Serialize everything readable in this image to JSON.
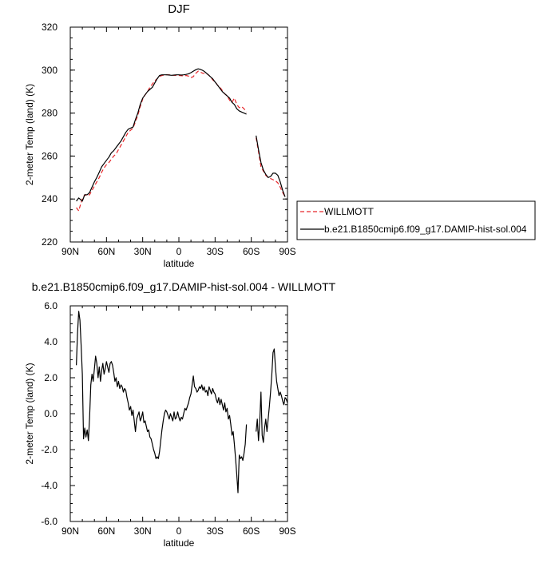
{
  "chart_data": [
    {
      "type": "line",
      "title": "DJF",
      "xlabel": "latitude",
      "ylabel": "2-meter Temp (land) (K)",
      "xlim": [
        90,
        -90
      ],
      "ylim": [
        220,
        320
      ],
      "x_ticks": [
        90,
        60,
        30,
        0,
        -30,
        -60,
        -90
      ],
      "x_tick_labels": [
        "90N",
        "60N",
        "30N",
        "0",
        "30S",
        "60S",
        "90S"
      ],
      "y_ticks": [
        220,
        240,
        260,
        280,
        300,
        320
      ],
      "y_tick_labels": [
        "220",
        "240",
        "260",
        "280",
        "300",
        "320"
      ],
      "legend": {
        "placement": "right",
        "entries": [
          "WILLMOTT",
          "b.e21.B1850cmip6.f09_g17.DAMIP-hist-sol.004"
        ]
      },
      "series": [
        {
          "name": "WILLMOTT",
          "color": "#e8262a",
          "dash": "dashed",
          "segments": [
            {
              "x": [
                85,
                83,
                82,
                80,
                78,
                76,
                74,
                72,
                70,
                68,
                66,
                64,
                62,
                60,
                58,
                56,
                54,
                52,
                50,
                48,
                46,
                44,
                42,
                40,
                38,
                36,
                34,
                32,
                30,
                28,
                26,
                24,
                22,
                20,
                18,
                16,
                14,
                12,
                10,
                8,
                6,
                4,
                2,
                0,
                -2,
                -4,
                -6,
                -8,
                -10,
                -12,
                -14,
                -16,
                -18,
                -20,
                -22,
                -24,
                -26,
                -28,
                -30,
                -32,
                -34,
                -36,
                -38,
                -40,
                -42,
                -44,
                -46,
                -48,
                -50,
                -52,
                -54,
                -56
              ],
              "y": [
                236,
                234.5,
                236.5,
                240,
                242,
                241.5,
                242,
                244,
                246,
                248,
                250,
                252.5,
                254.5,
                256,
                257,
                258.5,
                260,
                261,
                263,
                265,
                267,
                269,
                271,
                272,
                273,
                276,
                279,
                283,
                286.5,
                288.5,
                290,
                292,
                293.5,
                295,
                296,
                297,
                297.5,
                297.7,
                297.8,
                297.8,
                297.7,
                297.6,
                297.5,
                297.5,
                297.4,
                297.3,
                297.5,
                297.2,
                296.5,
                297,
                298.5,
                299.5,
                299,
                298.5,
                298.5,
                298,
                297,
                295.5,
                294.5,
                293,
                292,
                290.5,
                289,
                288,
                286,
                285,
                287,
                284,
                282.5,
                283,
                282,
                280.5
              ]
            },
            {
              "x": [
                -64,
                -66,
                -68,
                -70,
                -72,
                -74,
                -76,
                -78,
                -80,
                -82,
                -84,
                -86,
                -88
              ],
              "y": [
                268.5,
                262,
                255,
                253,
                251,
                250,
                249.5,
                249,
                248.5,
                247.5,
                245.5,
                243,
                241
              ]
            }
          ]
        },
        {
          "name": "b.e21.B1850cmip6.f09_g17.DAMIP-hist-sol.004",
          "color": "#000000",
          "dash": "solid",
          "segments": [
            {
              "x": [
                85,
                83,
                82,
                80,
                78,
                76,
                74,
                72,
                70,
                68,
                66,
                64,
                62,
                60,
                58,
                56,
                54,
                52,
                50,
                48,
                46,
                44,
                42,
                40,
                38,
                36,
                34,
                32,
                30,
                28,
                26,
                24,
                22,
                20,
                18,
                16,
                14,
                12,
                10,
                8,
                6,
                4,
                2,
                0,
                -2,
                -4,
                -6,
                -8,
                -10,
                -12,
                -14,
                -16,
                -18,
                -20,
                -22,
                -24,
                -26,
                -28,
                -30,
                -32,
                -34,
                -36,
                -38,
                -40,
                -42,
                -44,
                -46,
                -48,
                -50,
                -52,
                -54,
                -56
              ],
              "y": [
                239,
                240.5,
                240,
                239,
                242,
                242,
                243,
                245.5,
                248,
                250,
                252.5,
                255,
                256.5,
                258,
                259.5,
                261.5,
                262.5,
                264,
                265.5,
                267,
                269,
                271,
                272.5,
                273,
                273.5,
                277,
                280,
                284,
                287,
                288.5,
                290,
                291,
                292,
                294,
                296,
                297.5,
                297.8,
                297.8,
                297.8,
                297.7,
                297.6,
                297.7,
                297.8,
                297.8,
                297.7,
                297.8,
                298,
                298.3,
                298.8,
                299.5,
                300.2,
                300.6,
                300.3,
                299.8,
                299,
                298,
                297,
                296,
                294.5,
                293,
                291.5,
                290,
                289,
                288,
                287,
                285,
                284,
                282,
                281,
                280.5,
                280,
                279.5
              ]
            },
            {
              "x": [
                -64,
                -66,
                -68,
                -70,
                -72,
                -74,
                -76,
                -78,
                -80,
                -82,
                -84,
                -86,
                -88
              ],
              "y": [
                269.5,
                263,
                257,
                253.5,
                251.5,
                250,
                250.5,
                252,
                252,
                251,
                248,
                244,
                241
              ]
            }
          ]
        }
      ]
    },
    {
      "type": "line",
      "title": "b.e21.B1850cmip6.f09_g17.DAMIP-hist-sol.004 - WILLMOTT",
      "xlabel": "latitude",
      "ylabel": "2-meter Temp (land) (K)",
      "xlim": [
        90,
        -90
      ],
      "ylim": [
        -6.0,
        6.0
      ],
      "x_ticks": [
        90,
        60,
        30,
        0,
        -30,
        -60,
        -90
      ],
      "x_tick_labels": [
        "90N",
        "60N",
        "30N",
        "0",
        "30S",
        "60S",
        "90S"
      ],
      "y_ticks": [
        -6,
        -4,
        -2,
        0,
        2,
        4,
        6
      ],
      "y_tick_labels": [
        "-6.0",
        "-4.0",
        "-2.0",
        "0.0",
        "2.0",
        "4.0",
        "6.0"
      ],
      "series": [
        {
          "color": "#000000",
          "dash": "solid",
          "segments": [
            {
              "x": [
                85,
                84,
                83,
                82,
                81,
                80,
                79,
                78,
                77,
                76,
                75,
                74,
                73,
                72,
                71,
                70,
                69,
                68,
                67,
                66,
                65,
                64,
                63,
                62,
                61,
                60,
                59,
                58,
                57,
                56,
                55,
                54,
                53,
                52,
                51,
                50,
                49,
                48,
                47,
                46,
                45,
                44,
                43,
                42,
                41,
                40,
                39,
                38,
                37,
                36,
                35,
                34,
                33,
                32,
                31,
                30,
                29,
                28,
                27,
                26,
                25,
                24,
                23,
                22,
                21,
                20,
                19,
                18,
                17,
                16,
                15,
                14,
                13,
                12,
                11,
                10,
                9,
                8,
                7,
                6,
                5,
                4,
                3,
                2,
                1,
                0,
                -1,
                -2,
                -3,
                -4,
                -5,
                -6,
                -7,
                -8,
                -9,
                -10,
                -11,
                -12,
                -13,
                -14,
                -15,
                -16,
                -17,
                -18,
                -19,
                -20,
                -21,
                -22,
                -23,
                -24,
                -25,
                -26,
                -27,
                -28,
                -29,
                -30,
                -31,
                -32,
                -33,
                -34,
                -35,
                -36,
                -37,
                -38,
                -39,
                -40,
                -41,
                -42,
                -43,
                -44,
                -45,
                -46,
                -47,
                -48,
                -49,
                -50,
                -51,
                -52,
                -53,
                -54,
                -55,
                -56
              ],
              "y": [
                2.7,
                4.5,
                5.7,
                5.2,
                3.8,
                2.2,
                -1.4,
                -0.8,
                -1.3,
                -0.9,
                -1.5,
                -0.2,
                1.6,
                2.2,
                1.8,
                2.5,
                3.2,
                2.8,
                2.0,
                2.6,
                1.8,
                2.4,
                2.8,
                2.2,
                2.5,
                2.9,
                2.6,
                2.3,
                2.8,
                2.9,
                2.7,
                2.3,
                1.8,
                2.0,
                1.5,
                1.8,
                1.4,
                1.6,
                1.5,
                1.2,
                1.4,
                1.3,
                0.9,
                0.6,
                0.2,
                0.4,
                -0.1,
                0.2,
                -0.4,
                -1.0,
                -0.3,
                -0.1,
                0.1,
                -0.4,
                -0.2,
                0.1,
                -0.5,
                -0.4,
                -0.7,
                -1.0,
                -0.9,
                -1.3,
                -1.4,
                -1.7,
                -2.0,
                -2.2,
                -2.5,
                -2.4,
                -2.5,
                -2.1,
                -1.5,
                -0.9,
                -0.4,
                0.0,
                0.2,
                0.1,
                -0.1,
                -0.3,
                0.0,
                -0.2,
                -0.4,
                0.1,
                -0.3,
                -0.2,
                0.1,
                -0.2,
                -0.4,
                -0.2,
                -0.3,
                0.0,
                0.3,
                0.2,
                0.4,
                0.6,
                0.9,
                1.1,
                1.6,
                2.1,
                1.5,
                1.4,
                1.2,
                1.3,
                1.5,
                1.4,
                1.6,
                1.3,
                1.5,
                1.2,
                1.3,
                1.0,
                1.5,
                1.3,
                1.1,
                1.4,
                1.2,
                1.1,
                0.8,
                0.6,
                0.9,
                0.5,
                0.8,
                0.5,
                0.2,
                0.6,
                0.1,
                0.3,
                -0.3,
                -0.1,
                -0.6,
                -1.2,
                -1.0,
                -1.7,
                -2.5,
                -3.4,
                -4.4,
                -2.3,
                -2.5,
                -2.4,
                -2.6,
                -2.2,
                -1.7,
                -0.6
              ]
            },
            {
              "x": [
                -64,
                -65,
                -66,
                -67,
                -68,
                -69,
                -70,
                -71,
                -72,
                -73,
                -74,
                -75,
                -76,
                -77,
                -78,
                -79,
                -80,
                -81,
                -82,
                -83,
                -84,
                -85,
                -86,
                -87,
                -88,
                -89,
                -90
              ],
              "y": [
                -1.0,
                -0.3,
                -1.5,
                -0.5,
                1.2,
                -1.2,
                -1.6,
                -0.8,
                -0.3,
                -1.0,
                -0.3,
                0.4,
                1.2,
                2.2,
                3.4,
                3.6,
                2.6,
                1.8,
                1.4,
                1.0,
                1.2,
                1.0,
                0.7,
                0.5,
                0.9,
                0.8,
                0.6
              ]
            }
          ]
        }
      ]
    }
  ]
}
